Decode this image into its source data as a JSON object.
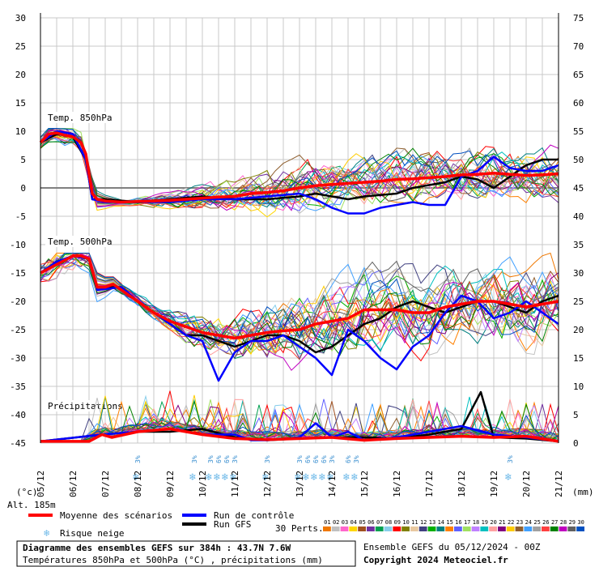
{
  "chart_data": {
    "type": "line",
    "title": "Diagramme des ensembles GEFS sur 384h : 43.7N 7.6W",
    "subtitle": "Températures 850hPa et 500hPa (°C) , précipitations (mm)",
    "run_info": "Ensemble GEFS du 05/12/2024 - 00Z",
    "copyright": "Copyright 2024 Meteociel.fr",
    "altitude": "Alt. 185m",
    "left_unit": "(°c)",
    "right_unit": "(mm)",
    "left_axis": {
      "ticks": [
        30,
        25,
        20,
        15,
        10,
        5,
        0,
        -5,
        -10,
        -15,
        -20,
        -25,
        -30,
        -35,
        -40,
        -45
      ],
      "ylim": [
        -45,
        30
      ]
    },
    "right_axis": {
      "ticks": [
        75,
        70,
        65,
        60,
        55,
        50,
        45,
        40,
        35,
        30,
        25,
        20,
        15,
        10,
        5,
        0
      ],
      "ylim": [
        0,
        75
      ]
    },
    "x_dates": [
      "05/12",
      "06/12",
      "07/12",
      "08/12",
      "09/12",
      "10/12",
      "11/12",
      "12/12",
      "13/12",
      "14/12",
      "15/12",
      "16/12",
      "17/12",
      "18/12",
      "19/12",
      "20/12",
      "21/12"
    ],
    "grid": true,
    "panels": [
      {
        "label": "Temp. 850hPa",
        "axis_unit": "°C"
      },
      {
        "label": "Temp. 500hPa",
        "axis_unit": "°C"
      },
      {
        "label": "Précipitations",
        "axis_unit": "mm"
      }
    ],
    "series": [
      {
        "name": "Moyenne des scénarios",
        "color": "#ff0000",
        "temp850": [
          [
            0,
            8
          ],
          [
            0.25,
            9.5
          ],
          [
            0.5,
            9.7
          ],
          [
            0.75,
            9.3
          ],
          [
            1.0,
            9.0
          ],
          [
            1.25,
            8.0
          ],
          [
            1.4,
            6.0
          ],
          [
            1.6,
            -1.0
          ],
          [
            1.75,
            -2.0
          ],
          [
            2.0,
            -2.3
          ],
          [
            2.5,
            -2.5
          ],
          [
            3.0,
            -2.4
          ],
          [
            3.5,
            -2.3
          ],
          [
            4.0,
            -2.2
          ],
          [
            4.5,
            -2.0
          ],
          [
            5.0,
            -1.8
          ],
          [
            5.5,
            -1.6
          ],
          [
            6.0,
            -1.5
          ],
          [
            6.5,
            -1.0
          ],
          [
            7.0,
            -0.8
          ],
          [
            7.5,
            -0.5
          ],
          [
            8.0,
            0.0
          ],
          [
            8.5,
            0.4
          ],
          [
            9.0,
            0.6
          ],
          [
            9.5,
            0.8
          ],
          [
            10.0,
            1.0
          ],
          [
            10.5,
            1.2
          ],
          [
            11.0,
            1.5
          ],
          [
            11.5,
            1.6
          ],
          [
            12.0,
            1.8
          ],
          [
            12.5,
            2.0
          ],
          [
            13.0,
            2.3
          ],
          [
            13.5,
            2.4
          ],
          [
            14.0,
            2.6
          ],
          [
            14.5,
            2.4
          ],
          [
            15.0,
            2.2
          ],
          [
            15.5,
            2.3
          ],
          [
            16.0,
            2.5
          ]
        ],
        "temp500": [
          [
            0,
            -15
          ],
          [
            0.5,
            -13.5
          ],
          [
            1.0,
            -12
          ],
          [
            1.25,
            -12
          ],
          [
            1.5,
            -12.5
          ],
          [
            1.75,
            -17.5
          ],
          [
            2.0,
            -17.5
          ],
          [
            2.25,
            -17.0
          ],
          [
            2.5,
            -18.0
          ],
          [
            3.0,
            -20.0
          ],
          [
            3.5,
            -22.0
          ],
          [
            4.0,
            -23.5
          ],
          [
            4.5,
            -24.5
          ],
          [
            5.0,
            -25.5
          ],
          [
            5.5,
            -26.0
          ],
          [
            6.0,
            -26.5
          ],
          [
            6.5,
            -26.0
          ],
          [
            7.0,
            -25.5
          ],
          [
            7.5,
            -25.2
          ],
          [
            8.0,
            -25.0
          ],
          [
            8.5,
            -24.0
          ],
          [
            9.0,
            -23.5
          ],
          [
            9.5,
            -23.0
          ],
          [
            10.0,
            -21.5
          ],
          [
            10.5,
            -21.5
          ],
          [
            11.0,
            -21.5
          ],
          [
            11.5,
            -22.0
          ],
          [
            12.0,
            -22.0
          ],
          [
            12.5,
            -21.0
          ],
          [
            13.0,
            -20.5
          ],
          [
            13.5,
            -20.0
          ],
          [
            14.0,
            -20.0
          ],
          [
            14.5,
            -20.5
          ],
          [
            15.0,
            -21.0
          ],
          [
            15.5,
            -20.5
          ],
          [
            16.0,
            -20.0
          ]
        ],
        "precip": [
          [
            0,
            0.3
          ],
          [
            1.5,
            0.3
          ],
          [
            1.9,
            1.5
          ],
          [
            2.2,
            1.0
          ],
          [
            3.0,
            2.0
          ],
          [
            4.0,
            2.5
          ],
          [
            4.5,
            2.0
          ],
          [
            5.0,
            1.5
          ],
          [
            6.0,
            0.8
          ],
          [
            7.0,
            0.6
          ],
          [
            8.0,
            0.8
          ],
          [
            9.0,
            1.0
          ],
          [
            10.0,
            0.5
          ],
          [
            11.0,
            0.8
          ],
          [
            12.0,
            1.0
          ],
          [
            13.0,
            1.2
          ],
          [
            14.0,
            1.0
          ],
          [
            15.0,
            1.2
          ],
          [
            16.0,
            0.3
          ]
        ]
      },
      {
        "name": "Run de contrôle",
        "color": "#0000ff",
        "temp850": [
          [
            0,
            8
          ],
          [
            0.5,
            10
          ],
          [
            1.0,
            9.5
          ],
          [
            1.4,
            5
          ],
          [
            1.6,
            -2
          ],
          [
            2.0,
            -2.5
          ],
          [
            3.0,
            -2.5
          ],
          [
            4.0,
            -2.5
          ],
          [
            5.0,
            -2.0
          ],
          [
            6.0,
            -2.0
          ],
          [
            7.0,
            -1.5
          ],
          [
            8.0,
            -1.0
          ],
          [
            8.5,
            -2.0
          ],
          [
            9.0,
            -3.5
          ],
          [
            9.5,
            -4.5
          ],
          [
            10.0,
            -4.5
          ],
          [
            10.5,
            -3.5
          ],
          [
            11.0,
            -3.0
          ],
          [
            11.5,
            -2.5
          ],
          [
            12.0,
            -3.0
          ],
          [
            12.5,
            -3.0
          ],
          [
            13.0,
            2.0
          ],
          [
            13.5,
            3.0
          ],
          [
            14.0,
            5.5
          ],
          [
            14.5,
            3.5
          ],
          [
            15.0,
            3.0
          ],
          [
            15.5,
            3.0
          ],
          [
            16.0,
            4.0
          ]
        ],
        "temp500": [
          [
            0,
            -15
          ],
          [
            0.5,
            -13
          ],
          [
            1.0,
            -12
          ],
          [
            1.5,
            -12.5
          ],
          [
            1.75,
            -18
          ],
          [
            2.5,
            -17.5
          ],
          [
            3.0,
            -20
          ],
          [
            3.5,
            -22
          ],
          [
            4.0,
            -24
          ],
          [
            4.5,
            -26
          ],
          [
            5.0,
            -27
          ],
          [
            5.5,
            -34
          ],
          [
            6.0,
            -29
          ],
          [
            6.5,
            -27
          ],
          [
            7.0,
            -27
          ],
          [
            7.5,
            -26
          ],
          [
            8.0,
            -28
          ],
          [
            8.5,
            -30
          ],
          [
            9.0,
            -33
          ],
          [
            9.5,
            -25
          ],
          [
            10.0,
            -27
          ],
          [
            10.5,
            -30
          ],
          [
            11.0,
            -32
          ],
          [
            11.5,
            -28
          ],
          [
            12.0,
            -26
          ],
          [
            12.5,
            -22
          ],
          [
            13.0,
            -19
          ],
          [
            13.5,
            -20
          ],
          [
            14.0,
            -23
          ],
          [
            14.5,
            -22
          ],
          [
            15.0,
            -20
          ],
          [
            15.5,
            -22
          ],
          [
            16.0,
            -24
          ]
        ],
        "precip": [
          [
            0,
            0.3
          ],
          [
            1.9,
            1.5
          ],
          [
            3.0,
            2.0
          ],
          [
            4.0,
            2.5
          ],
          [
            5.0,
            1.5
          ],
          [
            6.0,
            1.5
          ],
          [
            6.5,
            0.5
          ],
          [
            7.0,
            0.5
          ],
          [
            8.0,
            1.0
          ],
          [
            8.5,
            3.5
          ],
          [
            9.0,
            1.0
          ],
          [
            9.5,
            2.0
          ],
          [
            10.0,
            0.5
          ],
          [
            11.0,
            1.0
          ],
          [
            12.0,
            2.0
          ],
          [
            13.0,
            3.0
          ],
          [
            14.0,
            1.5
          ],
          [
            15.0,
            1.0
          ],
          [
            16.0,
            0.3
          ]
        ]
      },
      {
        "name": "Run GFS",
        "color": "#000000",
        "temp850": [
          [
            0,
            8
          ],
          [
            0.5,
            9.5
          ],
          [
            1.0,
            9.0
          ],
          [
            1.4,
            5.0
          ],
          [
            1.6,
            -2.0
          ],
          [
            2.0,
            -2.0
          ],
          [
            3.0,
            -2.5
          ],
          [
            4.0,
            -2.0
          ],
          [
            5.0,
            -1.5
          ],
          [
            6.0,
            -2.0
          ],
          [
            7.0,
            -2.0
          ],
          [
            8.0,
            -1.5
          ],
          [
            8.5,
            -1.0
          ],
          [
            9.0,
            -1.5
          ],
          [
            9.5,
            -2.0
          ],
          [
            10.0,
            -1.5
          ],
          [
            11.0,
            -1.0
          ],
          [
            11.5,
            0.0
          ],
          [
            12.0,
            0.5
          ],
          [
            12.5,
            1.0
          ],
          [
            13.0,
            2.0
          ],
          [
            13.5,
            1.5
          ],
          [
            14.0,
            0.0
          ],
          [
            14.5,
            2.0
          ],
          [
            15.0,
            4.0
          ],
          [
            15.5,
            5.0
          ],
          [
            16.0,
            5.0
          ]
        ],
        "temp500": [
          [
            0,
            -15
          ],
          [
            0.5,
            -13
          ],
          [
            1.0,
            -12
          ],
          [
            1.5,
            -12.5
          ],
          [
            1.75,
            -17.5
          ],
          [
            2.5,
            -17.5
          ],
          [
            3.0,
            -20
          ],
          [
            3.5,
            -22
          ],
          [
            4.0,
            -24
          ],
          [
            4.5,
            -26
          ],
          [
            5.0,
            -26
          ],
          [
            5.5,
            -27
          ],
          [
            6.0,
            -28
          ],
          [
            6.5,
            -27
          ],
          [
            7.0,
            -26
          ],
          [
            7.5,
            -26
          ],
          [
            8.0,
            -27
          ],
          [
            8.5,
            -29
          ],
          [
            9.0,
            -28
          ],
          [
            9.5,
            -26
          ],
          [
            10.0,
            -24
          ],
          [
            10.5,
            -23
          ],
          [
            11.0,
            -21
          ],
          [
            11.5,
            -20
          ],
          [
            12.0,
            -21
          ],
          [
            12.5,
            -22
          ],
          [
            13.0,
            -21
          ],
          [
            13.5,
            -20
          ],
          [
            14.0,
            -20
          ],
          [
            14.5,
            -21
          ],
          [
            15.0,
            -22
          ],
          [
            15.5,
            -20
          ],
          [
            16.0,
            -19
          ]
        ],
        "precip": [
          [
            0,
            0.3
          ],
          [
            1.9,
            1.5
          ],
          [
            3.0,
            2.0
          ],
          [
            4.0,
            2.0
          ],
          [
            5.0,
            2.5
          ],
          [
            6.0,
            1.0
          ],
          [
            7.0,
            0.5
          ],
          [
            8.0,
            0.8
          ],
          [
            9.0,
            1.0
          ],
          [
            10.0,
            1.0
          ],
          [
            11.0,
            0.8
          ],
          [
            12.0,
            1.5
          ],
          [
            13.0,
            2.5
          ],
          [
            13.6,
            9.0
          ],
          [
            14.0,
            1.0
          ],
          [
            15.0,
            0.8
          ],
          [
            16.0,
            0.3
          ]
        ]
      }
    ],
    "snow_risk": [
      {
        "date_index": 3.0,
        "label": "3%"
      },
      {
        "date_index": 4.75,
        "label": "3%"
      },
      {
        "date_index": 5.25,
        "label": "3%"
      },
      {
        "date_index": 5.5,
        "label": "6%"
      },
      {
        "date_index": 5.75,
        "label": "6%"
      },
      {
        "date_index": 6.0,
        "label": "3%"
      },
      {
        "date_index": 7.0,
        "label": "3%"
      },
      {
        "date_index": 8.0,
        "label": "3%"
      },
      {
        "date_index": 8.25,
        "label": "6%"
      },
      {
        "date_index": 8.5,
        "label": "6%"
      },
      {
        "date_index": 8.75,
        "label": "6%"
      },
      {
        "date_index": 9.0,
        "label": "3%"
      },
      {
        "date_index": 9.5,
        "label": "6%"
      },
      {
        "date_index": 9.75,
        "label": "3%"
      },
      {
        "date_index": 14.5,
        "label": "3%"
      }
    ],
    "perturbations": {
      "label": "30 Perts.",
      "codes": [
        "01",
        "02",
        "03",
        "04",
        "05",
        "06",
        "07",
        "08",
        "09",
        "10",
        "11",
        "12",
        "13",
        "14",
        "15",
        "16",
        "17",
        "18",
        "19",
        "20",
        "21",
        "22",
        "23",
        "24",
        "25",
        "26",
        "27",
        "28",
        "29",
        "30"
      ],
      "colors": [
        "#f07800",
        "#c0c0c0",
        "#ff66cc",
        "#ffd700",
        "#a05020",
        "#7030a0",
        "#00a050",
        "#87ceeb",
        "#ff0000",
        "#808000",
        "#e8c8a0",
        "#404080",
        "#00b000",
        "#008080",
        "#ff8000",
        "#6060ff",
        "#a0e060",
        "#c080ff",
        "#00c0c0",
        "#ffa0a0",
        "#800080",
        "#ffcc00",
        "#906030",
        "#40a0ff",
        "#a0a0a0",
        "#ff4040",
        "#008000",
        "#c000c0",
        "#606060",
        "#0050c0"
      ]
    }
  },
  "legend": {
    "mean_label": "Moyenne des scénarios",
    "control_label": "Run de contrôle",
    "gfs_label": "Run GFS",
    "snow_label": "Risque neige"
  }
}
